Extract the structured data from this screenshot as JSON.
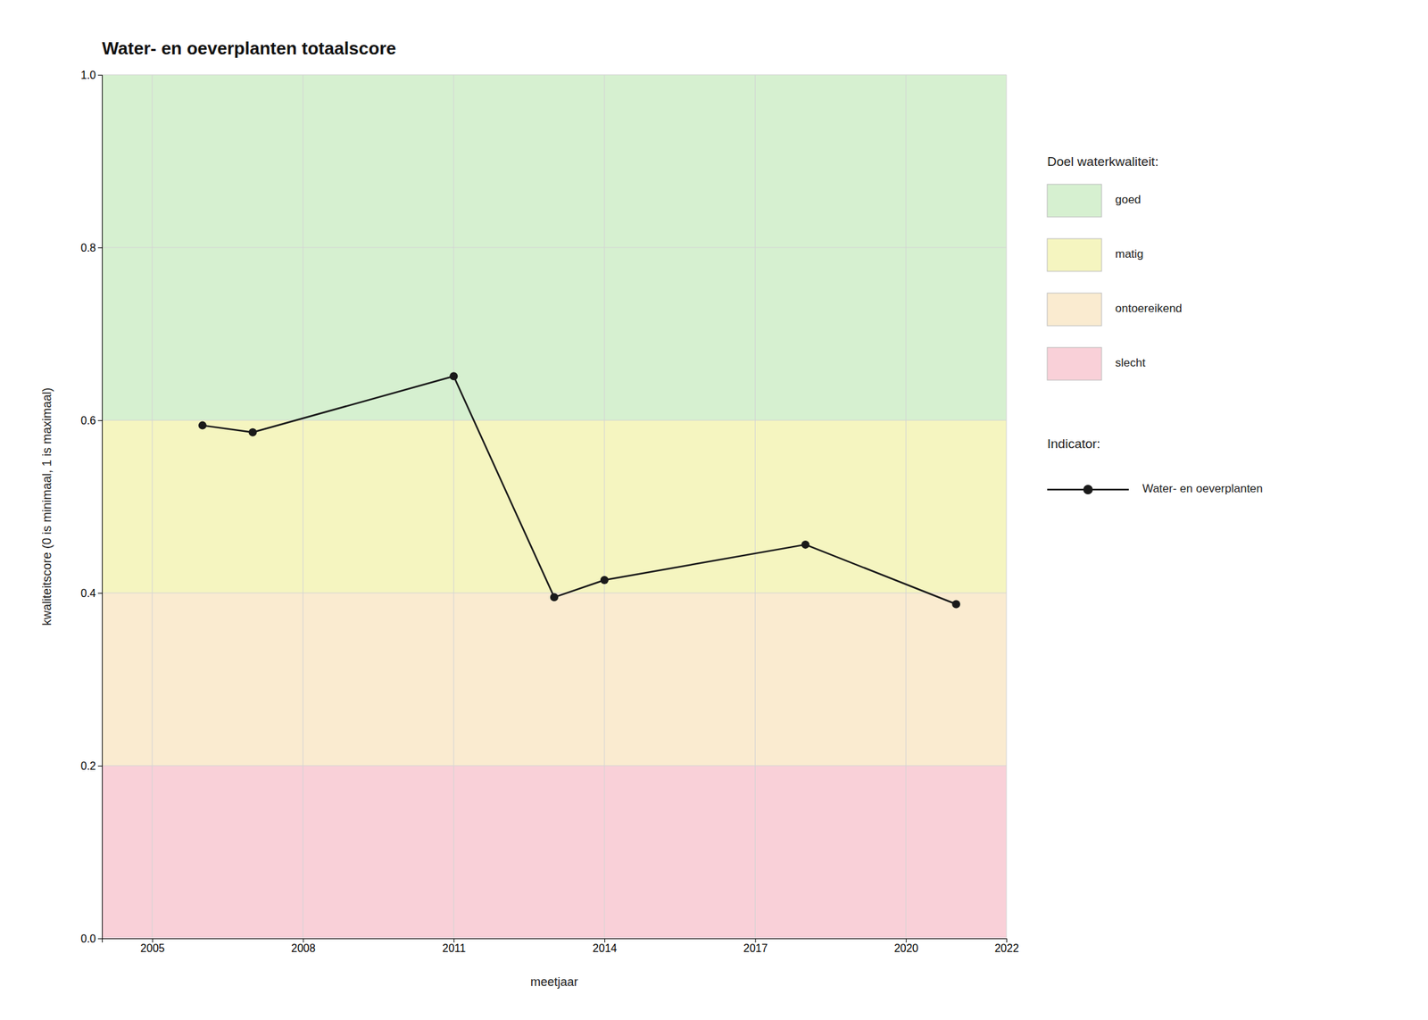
{
  "chart_data": {
    "type": "line",
    "title": "Water- en oeverplanten totaalscore",
    "x_label": "meetjaar",
    "y_label": "kwaliteitscore (0 is minimaal, 1 is maximaal)",
    "x": [
      2006,
      2007,
      2011,
      2013,
      2014,
      2018,
      2021
    ],
    "series": [
      {
        "name": "Water- en oeverplanten",
        "color": "#1a1a1a",
        "marker": "circle",
        "line_style": "solid",
        "values": [
          0.594,
          0.586,
          0.651,
          0.395,
          0.415,
          0.456,
          0.387
        ]
      }
    ],
    "xlim": [
      2004,
      2022
    ],
    "ylim": [
      0.0,
      1.0
    ],
    "xticks": [
      2005,
      2008,
      2011,
      2014,
      2017,
      2020,
      2022
    ],
    "yticks": [
      {
        "value": 0.0,
        "label": "0.0"
      },
      0.2,
      0.4,
      0.6,
      0.8,
      {
        "value": 1.0,
        "label": "1.0"
      }
    ],
    "zones_title": "Doel waterkwaliteit:",
    "zones": [
      {
        "label": "goed",
        "ymin": 0.6,
        "ymax": 1.0,
        "color": "#d6f0d0"
      },
      {
        "label": "matig",
        "ymin": 0.4,
        "ymax": 0.6,
        "color": "#f5f5c0"
      },
      {
        "label": "ontoereikend",
        "ymin": 0.2,
        "ymax": 0.4,
        "color": "#faebd0"
      },
      {
        "label": "slecht",
        "ymin": 0.0,
        "ymax": 0.2,
        "color": "#f9d0d8"
      }
    ],
    "series_title": "Indicator:",
    "grid": true,
    "legend": "right"
  }
}
